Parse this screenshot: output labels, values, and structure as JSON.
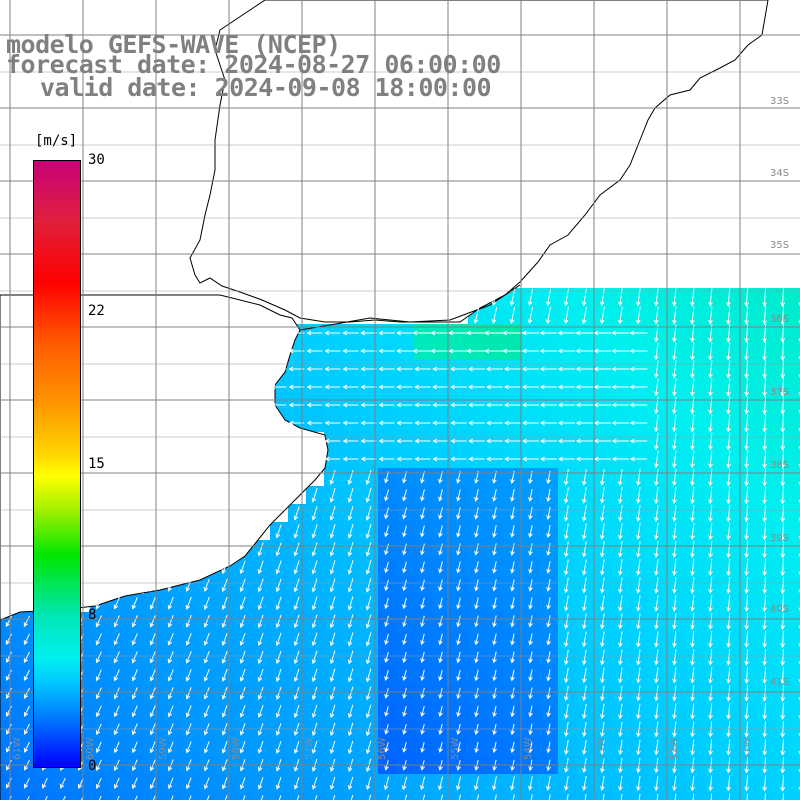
{
  "title": {
    "line1": "modelo GEFS-WAVE (NCEP)",
    "line2": "forecast date: 2024-08-27 06:00:00",
    "line3": "valid date: 2024-09-08 18:00:00"
  },
  "colorbar": {
    "unit": "[m/s]",
    "ticks": [
      "30",
      "22",
      "15",
      "8",
      "0"
    ],
    "tick_values": [
      30,
      22,
      15,
      8,
      0
    ],
    "range": [
      0,
      30
    ],
    "colors": [
      "#0000ff",
      "#0078ff",
      "#00c8ff",
      "#00f0f0",
      "#00e6b4",
      "#00e600",
      "#9bf000",
      "#ffff00",
      "#ff9600",
      "#ff0000",
      "#c80078"
    ]
  },
  "map": {
    "land_color": "#ffffff",
    "grid_color": "#808080",
    "coast_color": "#000000",
    "lat_labels": [
      "33S",
      "34S",
      "35S",
      "36S",
      "37S",
      "38S",
      "39S",
      "40S",
      "41S"
    ],
    "lon_labels": [
      "61W",
      "60W",
      "59W",
      "58W",
      "57W",
      "56W",
      "55W",
      "54W",
      "53W",
      "52W",
      "51W"
    ],
    "wind_direction": "mostly northerly offshore, easterly along the Rio de la Plata estuary"
  }
}
